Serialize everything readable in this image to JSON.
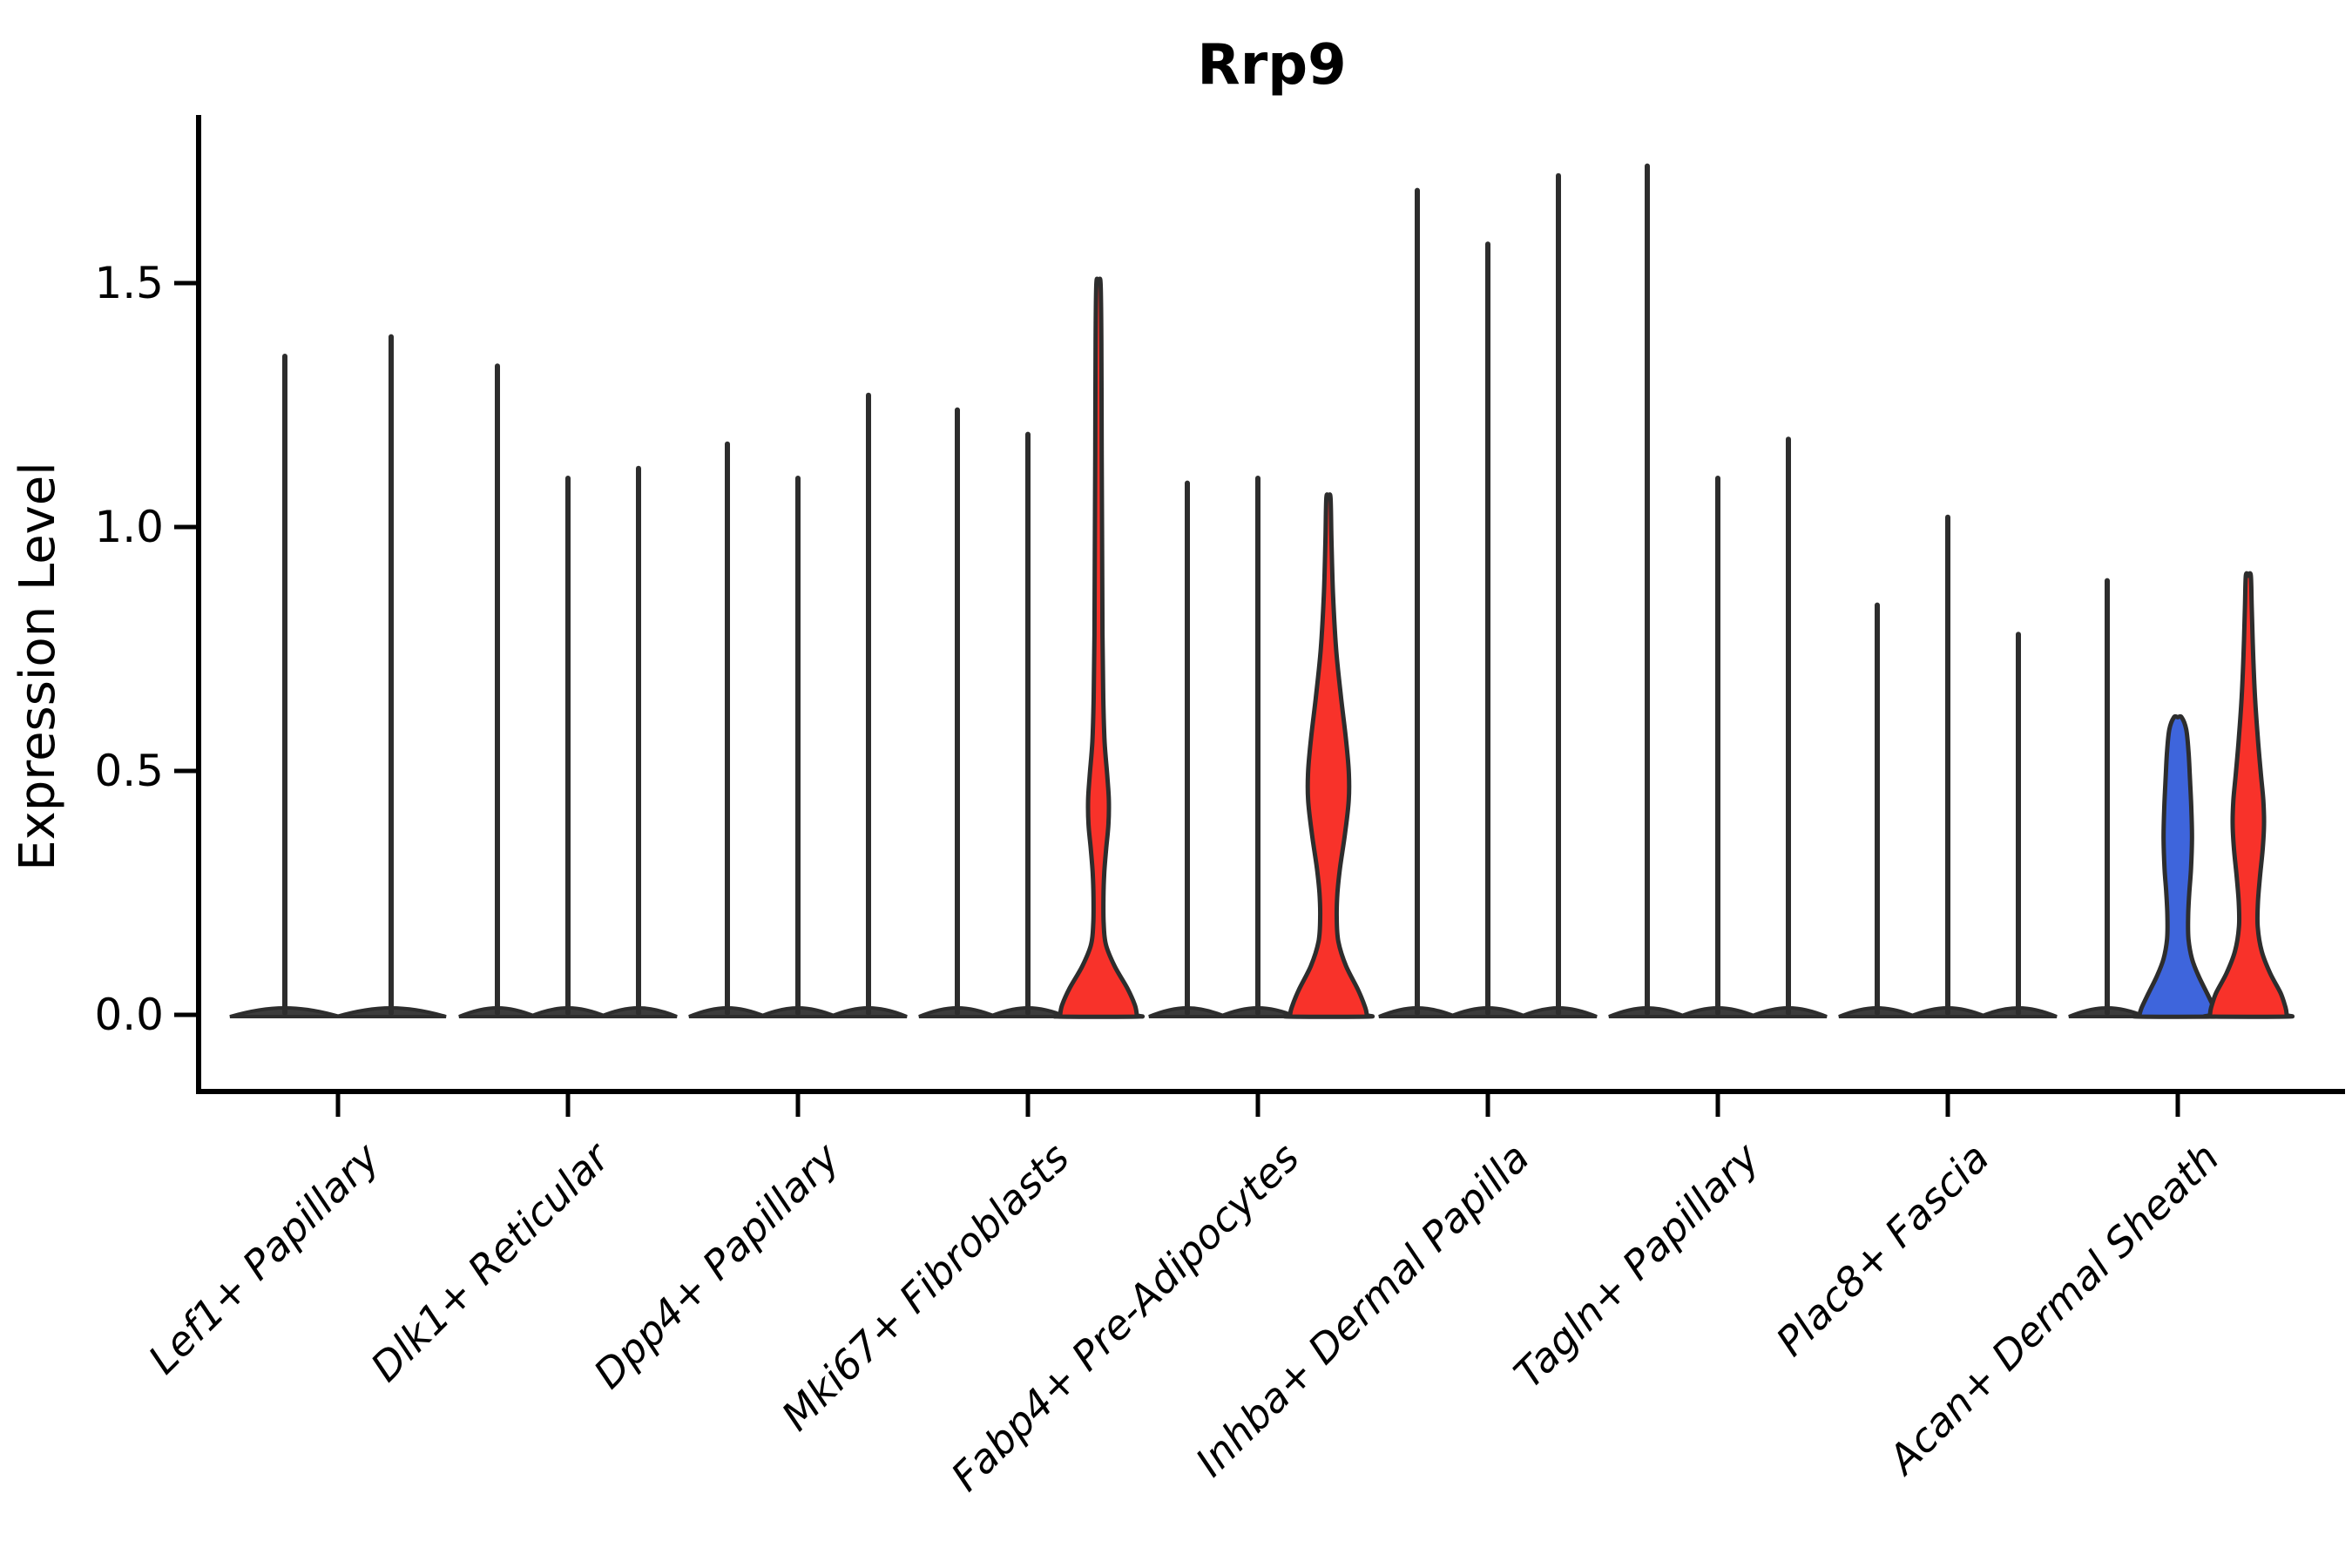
{
  "page": {
    "background": "#FFFFFF"
  },
  "chart_data": {
    "type": "violin",
    "title": "Rrp9",
    "ylabel": "Expression Level",
    "xlabel": "",
    "ylim": [
      -0.16,
      1.84
    ],
    "grid": false,
    "legend": "none",
    "yticks": [
      {
        "value": 0.0,
        "label": "0.0"
      },
      {
        "value": 0.5,
        "label": "0.5"
      },
      {
        "value": 1.0,
        "label": "1.0"
      },
      {
        "value": 1.5,
        "label": "1.5"
      }
    ],
    "colors": {
      "red": "#F8322A",
      "blue": "#3E65DC",
      "ink": "#2D2D2D",
      "violin_dark_fill": "#3C3C3C",
      "axis": "#000000"
    },
    "description": "Violin plot of Rrp9 expression level per fibroblast cluster; each cluster holds 2-3 violins, most collapsed to near-zero spikes; colored violins (red/blue) show non-zero density bulges.",
    "categories": [
      {
        "label": "Lef1+ Papillary",
        "violins": [
          {
            "kind": "spike",
            "max": 1.35,
            "color": "dark"
          },
          {
            "kind": "spike",
            "max": 1.39,
            "color": "dark"
          }
        ]
      },
      {
        "label": "Dlk1+ Reticular",
        "violins": [
          {
            "kind": "spike",
            "max": 1.33,
            "color": "dark"
          },
          {
            "kind": "spike",
            "max": 1.1,
            "color": "dark"
          },
          {
            "kind": "spike",
            "max": 1.12,
            "color": "dark"
          }
        ]
      },
      {
        "label": "Dpp4+ Papillary",
        "violins": [
          {
            "kind": "spike",
            "max": 1.17,
            "color": "dark"
          },
          {
            "kind": "spike",
            "max": 1.1,
            "color": "dark"
          },
          {
            "kind": "spike",
            "max": 1.27,
            "color": "dark"
          }
        ]
      },
      {
        "label": "Mki67+ Fibroblasts",
        "violins": [
          {
            "kind": "spike",
            "max": 1.24,
            "color": "dark"
          },
          {
            "kind": "spike",
            "max": 1.19,
            "color": "dark"
          },
          {
            "kind": "shaped",
            "max": 1.5,
            "color": "red",
            "profile": [
              [
                1.5,
                0.055
              ],
              [
                1.38,
                0.075
              ],
              [
                1.15,
                0.085
              ],
              [
                0.95,
                0.095
              ],
              [
                0.78,
                0.105
              ],
              [
                0.65,
                0.125
              ],
              [
                0.56,
                0.16
              ],
              [
                0.49,
                0.23
              ],
              [
                0.44,
                0.27
              ],
              [
                0.39,
                0.26
              ],
              [
                0.34,
                0.2
              ],
              [
                0.29,
                0.15
              ],
              [
                0.24,
                0.13
              ],
              [
                0.19,
                0.135
              ],
              [
                0.145,
                0.19
              ],
              [
                0.1,
                0.42
              ],
              [
                0.055,
                0.75
              ],
              [
                0.02,
                0.95
              ],
              [
                0.0,
                1.0
              ]
            ]
          }
        ]
      },
      {
        "label": "Fabp4+ Pre-Adipocytes",
        "violins": [
          {
            "kind": "spike",
            "max": 1.09,
            "color": "dark"
          },
          {
            "kind": "spike",
            "max": 1.1,
            "color": "dark"
          },
          {
            "kind": "shaped",
            "max": 1.06,
            "color": "red",
            "profile": [
              [
                1.06,
                0.055
              ],
              [
                0.97,
                0.08
              ],
              [
                0.86,
                0.12
              ],
              [
                0.75,
                0.2
              ],
              [
                0.65,
                0.33
              ],
              [
                0.57,
                0.45
              ],
              [
                0.5,
                0.53
              ],
              [
                0.44,
                0.53
              ],
              [
                0.37,
                0.43
              ],
              [
                0.3,
                0.3
              ],
              [
                0.25,
                0.235
              ],
              [
                0.2,
                0.215
              ],
              [
                0.15,
                0.26
              ],
              [
                0.1,
                0.46
              ],
              [
                0.05,
                0.78
              ],
              [
                0.015,
                0.96
              ],
              [
                0.0,
                1.0
              ]
            ]
          }
        ]
      },
      {
        "label": "Inhba+ Dermal Papilla",
        "violins": [
          {
            "kind": "spike",
            "max": 1.69,
            "color": "dark"
          },
          {
            "kind": "spike",
            "max": 1.58,
            "color": "dark"
          },
          {
            "kind": "spike",
            "max": 1.72,
            "color": "dark"
          }
        ]
      },
      {
        "label": "Tagln+ Papillary",
        "violins": [
          {
            "kind": "spike",
            "max": 1.74,
            "color": "dark"
          },
          {
            "kind": "spike",
            "max": 1.1,
            "color": "dark"
          },
          {
            "kind": "spike",
            "max": 1.18,
            "color": "dark"
          }
        ]
      },
      {
        "label": "Plac8+ Fascia",
        "violins": [
          {
            "kind": "spike",
            "max": 0.84,
            "color": "dark"
          },
          {
            "kind": "spike",
            "max": 1.02,
            "color": "dark"
          },
          {
            "kind": "spike",
            "max": 0.78,
            "color": "dark"
          }
        ]
      },
      {
        "label": "Acan+ Dermal Sheath",
        "violins": [
          {
            "kind": "spike",
            "max": 0.89,
            "color": "dark"
          },
          {
            "kind": "shaped",
            "max": 0.61,
            "color": "blue",
            "profile": [
              [
                0.61,
                0.1
              ],
              [
                0.585,
                0.22
              ],
              [
                0.54,
                0.28
              ],
              [
                0.48,
                0.32
              ],
              [
                0.42,
                0.355
              ],
              [
                0.36,
                0.37
              ],
              [
                0.3,
                0.345
              ],
              [
                0.25,
                0.3
              ],
              [
                0.2,
                0.27
              ],
              [
                0.155,
                0.28
              ],
              [
                0.115,
                0.37
              ],
              [
                0.08,
                0.54
              ],
              [
                0.045,
                0.76
              ],
              [
                0.015,
                0.94
              ],
              [
                0.0,
                1.0
              ]
            ]
          },
          {
            "kind": "shaped",
            "max": 0.9,
            "color": "red",
            "profile": [
              [
                0.9,
                0.065
              ],
              [
                0.83,
                0.09
              ],
              [
                0.74,
                0.125
              ],
              [
                0.65,
                0.175
              ],
              [
                0.57,
                0.245
              ],
              [
                0.5,
                0.32
              ],
              [
                0.44,
                0.39
              ],
              [
                0.39,
                0.41
              ],
              [
                0.34,
                0.375
              ],
              [
                0.28,
                0.3
              ],
              [
                0.23,
                0.25
              ],
              [
                0.18,
                0.245
              ],
              [
                0.13,
                0.35
              ],
              [
                0.085,
                0.57
              ],
              [
                0.045,
                0.84
              ],
              [
                0.015,
                0.97
              ],
              [
                0.0,
                1.0
              ]
            ]
          }
        ]
      }
    ]
  }
}
